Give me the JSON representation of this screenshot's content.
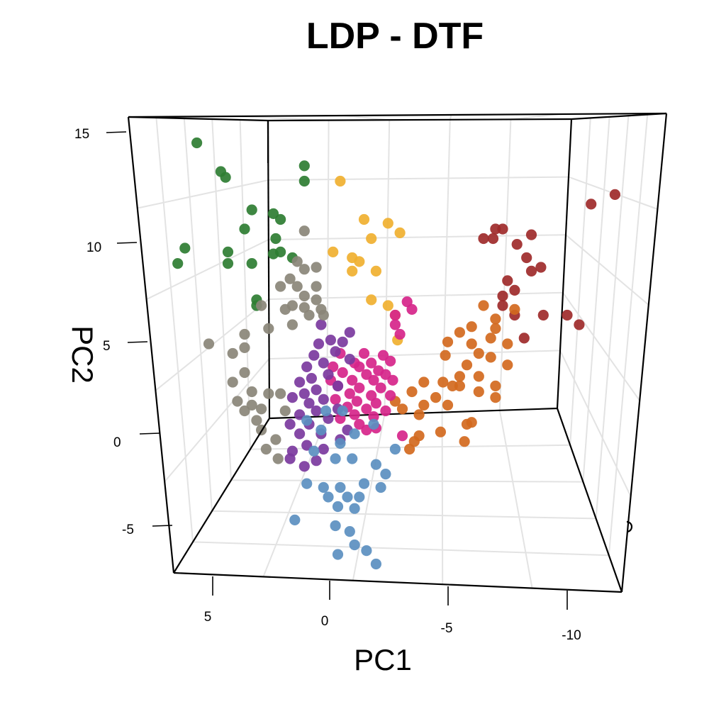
{
  "chart_data": {
    "type": "scatter",
    "title": "LDP - DTF",
    "xlabel": "PC1",
    "ylabel": "PC2",
    "x_ticks": [
      "5",
      "0",
      "-5",
      "-10"
    ],
    "y_ticks": [
      "15",
      "10",
      "5",
      "0",
      "-5"
    ],
    "xlim": [
      -12.5,
      7.5
    ],
    "ylim": [
      -7.5,
      16.5
    ],
    "grid": true,
    "series": [
      {
        "color": "#2e7d32",
        "points": [
          [
            5.5,
            15.5
          ],
          [
            4.5,
            14.0
          ],
          [
            4.3,
            13.7
          ],
          [
            1.0,
            13.5
          ],
          [
            1.0,
            14.3
          ],
          [
            3.2,
            12.0
          ],
          [
            2.3,
            11.8
          ],
          [
            2.0,
            11.5
          ],
          [
            3.5,
            11.0
          ],
          [
            2.2,
            10.5
          ],
          [
            2.3,
            9.7
          ],
          [
            6.0,
            10.0
          ],
          [
            6.3,
            9.2
          ],
          [
            4.2,
            9.8
          ],
          [
            4.2,
            9.2
          ],
          [
            3.2,
            9.2
          ],
          [
            2.0,
            9.8
          ],
          [
            1.5,
            9.5
          ],
          [
            3.0,
            7.3
          ],
          [
            3.0,
            7.0
          ]
        ]
      },
      {
        "color": "#f0b030",
        "points": [
          [
            -0.5,
            13.5
          ],
          [
            -1.5,
            11.5
          ],
          [
            -2.5,
            11.3
          ],
          [
            -3.0,
            10.8
          ],
          [
            -1.8,
            10.5
          ],
          [
            -1.0,
            9.5
          ],
          [
            -0.2,
            9.8
          ],
          [
            -1.3,
            9.3
          ],
          [
            -1.0,
            8.8
          ],
          [
            -2.0,
            8.8
          ],
          [
            -2.5,
            7.0
          ],
          [
            -1.8,
            7.3
          ],
          [
            -2.8,
            6.5
          ],
          [
            -2.9,
            5.2
          ]
        ]
      },
      {
        "color": "#9e2a2a",
        "points": [
          [
            -12.0,
            12.8
          ],
          [
            -11.0,
            12.3
          ],
          [
            -7.0,
            11.0
          ],
          [
            -7.3,
            11.0
          ],
          [
            -6.5,
            10.5
          ],
          [
            -6.9,
            10.5
          ],
          [
            -8.5,
            10.7
          ],
          [
            -7.9,
            10.2
          ],
          [
            -8.3,
            9.5
          ],
          [
            -8.9,
            9.0
          ],
          [
            -8.5,
            8.8
          ],
          [
            -7.5,
            8.3
          ],
          [
            -7.8,
            7.8
          ],
          [
            -7.3,
            7.5
          ],
          [
            -7.3,
            7.0
          ],
          [
            -9.0,
            6.5
          ],
          [
            -10.0,
            6.5
          ],
          [
            -7.8,
            6.5
          ],
          [
            -10.5,
            6.0
          ],
          [
            -8.2,
            5.3
          ]
        ]
      },
      {
        "color": "#d2691e",
        "points": [
          [
            -6.5,
            7.0
          ],
          [
            -7.8,
            6.8
          ],
          [
            -7.0,
            6.3
          ],
          [
            -6.0,
            5.9
          ],
          [
            -5.5,
            5.6
          ],
          [
            -7.0,
            5.8
          ],
          [
            -6.8,
            5.3
          ],
          [
            -7.5,
            5.0
          ],
          [
            -6.0,
            5.0
          ],
          [
            -5.0,
            5.1
          ],
          [
            -6.8,
            4.3
          ],
          [
            -6.3,
            4.5
          ],
          [
            -4.9,
            4.4
          ],
          [
            -5.8,
            3.9
          ],
          [
            -7.5,
            3.9
          ],
          [
            -6.3,
            3.3
          ],
          [
            -5.5,
            3.3
          ],
          [
            -4.8,
            3.0
          ],
          [
            -4.0,
            3.0
          ],
          [
            -5.5,
            2.8
          ],
          [
            -7.0,
            2.8
          ],
          [
            -3.5,
            2.5
          ],
          [
            -6.3,
            2.5
          ],
          [
            -4.5,
            2.2
          ],
          [
            -5.0,
            1.8
          ],
          [
            -4.0,
            1.8
          ],
          [
            -3.8,
            1.3
          ],
          [
            -2.8,
            2.0
          ],
          [
            -3.1,
            1.6
          ],
          [
            -6.0,
            0.9
          ],
          [
            -5.8,
            0.8
          ],
          [
            -4.7,
            0.4
          ],
          [
            -3.8,
            0.2
          ],
          [
            -5.7,
            -0.1
          ],
          [
            -3.6,
            -0.1
          ],
          [
            -3.4,
            -0.5
          ],
          [
            -7.0,
            2.2
          ],
          [
            -5.2,
            2.8
          ]
        ]
      },
      {
        "color": "#d6258a",
        "points": [
          [
            -3.3,
            7.2
          ],
          [
            -3.5,
            6.8
          ],
          [
            -2.8,
            6.5
          ],
          [
            -2.8,
            6.0
          ],
          [
            -3.0,
            5.5
          ],
          [
            -0.5,
            4.5
          ],
          [
            -1.5,
            4.5
          ],
          [
            -2.3,
            4.4
          ],
          [
            -1.1,
            4.0
          ],
          [
            -1.8,
            4.0
          ],
          [
            -2.6,
            4.1
          ],
          [
            -0.2,
            3.8
          ],
          [
            -1.3,
            3.8
          ],
          [
            -2.1,
            3.6
          ],
          [
            -0.6,
            3.5
          ],
          [
            -1.6,
            3.4
          ],
          [
            -2.4,
            3.4
          ],
          [
            -0.1,
            3.1
          ],
          [
            -1.0,
            3.1
          ],
          [
            -1.9,
            3.1
          ],
          [
            -2.7,
            3.1
          ],
          [
            -0.4,
            2.8
          ],
          [
            -1.3,
            2.7
          ],
          [
            -2.2,
            2.7
          ],
          [
            -0.9,
            2.4
          ],
          [
            -1.8,
            2.3
          ],
          [
            -2.6,
            2.3
          ],
          [
            -0.3,
            2.1
          ],
          [
            -1.2,
            2.0
          ],
          [
            -2.0,
            1.9
          ],
          [
            -0.8,
            1.7
          ],
          [
            -1.6,
            1.6
          ],
          [
            -2.4,
            1.5
          ],
          [
            -1.1,
            1.3
          ],
          [
            -1.9,
            1.2
          ],
          [
            -0.5,
            1.1
          ],
          [
            -1.3,
            0.8
          ],
          [
            -2.0,
            0.6
          ],
          [
            -1.6,
            0.5
          ],
          [
            -3.1,
            0.2
          ]
        ]
      },
      {
        "color": "#7b3a9e",
        "points": [
          [
            -0.9,
            5.6
          ],
          [
            -0.6,
            5.1
          ],
          [
            -0.1,
            5.2
          ],
          [
            0.4,
            5.0
          ],
          [
            -0.3,
            4.6
          ],
          [
            0.6,
            4.4
          ],
          [
            -0.9,
            4.2
          ],
          [
            0.2,
            4.0
          ],
          [
            0.9,
            3.8
          ],
          [
            0.0,
            3.4
          ],
          [
            0.7,
            3.2
          ],
          [
            1.2,
            3.0
          ],
          [
            -0.4,
            2.8
          ],
          [
            0.5,
            2.6
          ],
          [
            1.0,
            2.4
          ],
          [
            0.2,
            2.1
          ],
          [
            0.8,
            1.9
          ],
          [
            1.5,
            2.2
          ],
          [
            -0.4,
            1.6
          ],
          [
            0.5,
            1.5
          ],
          [
            1.2,
            1.3
          ],
          [
            0.0,
            1.1
          ],
          [
            0.8,
            0.8
          ],
          [
            1.6,
            0.8
          ],
          [
            0.3,
            0.3
          ],
          [
            1.2,
            0.3
          ],
          [
            -0.8,
            0.5
          ],
          [
            0.9,
            -0.3
          ],
          [
            0.2,
            -0.5
          ],
          [
            1.5,
            -0.6
          ],
          [
            0.5,
            -1.1
          ],
          [
            1.0,
            -1.4
          ],
          [
            1.6,
            -1.0
          ],
          [
            0.3,
            6.0
          ],
          [
            -0.5,
            0.0
          ]
        ]
      },
      {
        "color": "#8a8678",
        "points": [
          [
            1.0,
            10.9
          ],
          [
            1.3,
            9.3
          ],
          [
            1.0,
            8.9
          ],
          [
            0.5,
            9.0
          ],
          [
            1.6,
            8.4
          ],
          [
            2.0,
            8.0
          ],
          [
            1.3,
            8.0
          ],
          [
            0.5,
            8.0
          ],
          [
            1.0,
            7.5
          ],
          [
            0.5,
            7.3
          ],
          [
            1.5,
            7.0
          ],
          [
            2.8,
            7.0
          ],
          [
            1.0,
            6.9
          ],
          [
            1.8,
            6.8
          ],
          [
            0.3,
            6.8
          ],
          [
            0.2,
            6.5
          ],
          [
            0.8,
            6.5
          ],
          [
            1.5,
            6.0
          ],
          [
            2.5,
            5.8
          ],
          [
            3.5,
            5.5
          ],
          [
            5.0,
            5.0
          ],
          [
            4.0,
            4.5
          ],
          [
            3.5,
            4.8
          ],
          [
            4.0,
            3.0
          ],
          [
            3.5,
            3.5
          ],
          [
            3.2,
            2.5
          ],
          [
            3.8,
            2.0
          ],
          [
            3.5,
            1.5
          ],
          [
            3.0,
            1.0
          ],
          [
            2.5,
            2.4
          ],
          [
            2.0,
            2.4
          ],
          [
            1.8,
            1.5
          ],
          [
            2.8,
            0.5
          ],
          [
            2.2,
            0.0
          ],
          [
            2.6,
            -0.5
          ],
          [
            2.1,
            -1.0
          ],
          [
            2.8,
            1.6
          ],
          [
            3.2,
            1.8
          ]
        ]
      },
      {
        "color": "#5b8fc0",
        "points": [
          [
            0.1,
            1.5
          ],
          [
            -0.6,
            1.5
          ],
          [
            0.9,
            1.0
          ],
          [
            -1.9,
            0.8
          ],
          [
            -1.1,
            0.3
          ],
          [
            0.3,
            0.5
          ],
          [
            -0.5,
            -0.2
          ],
          [
            -2.8,
            -0.5
          ],
          [
            0.6,
            -0.6
          ],
          [
            -1.0,
            -1.0
          ],
          [
            -0.3,
            -1.0
          ],
          [
            -2.0,
            -1.3
          ],
          [
            -2.4,
            -1.8
          ],
          [
            0.9,
            -2.3
          ],
          [
            0.2,
            -2.5
          ],
          [
            -0.5,
            -2.5
          ],
          [
            -1.5,
            -2.3
          ],
          [
            -2.2,
            -2.5
          ],
          [
            -0.8,
            -3.0
          ],
          [
            -1.3,
            -3.0
          ],
          [
            0.0,
            -3.0
          ],
          [
            -0.4,
            -3.5
          ],
          [
            -1.1,
            -3.6
          ],
          [
            -0.3,
            -4.5
          ],
          [
            1.4,
            -4.2
          ],
          [
            -0.9,
            -4.8
          ],
          [
            -1.1,
            -5.5
          ],
          [
            -1.6,
            -5.8
          ],
          [
            -0.4,
            -6.0
          ],
          [
            -2.0,
            -6.5
          ]
        ]
      }
    ]
  }
}
